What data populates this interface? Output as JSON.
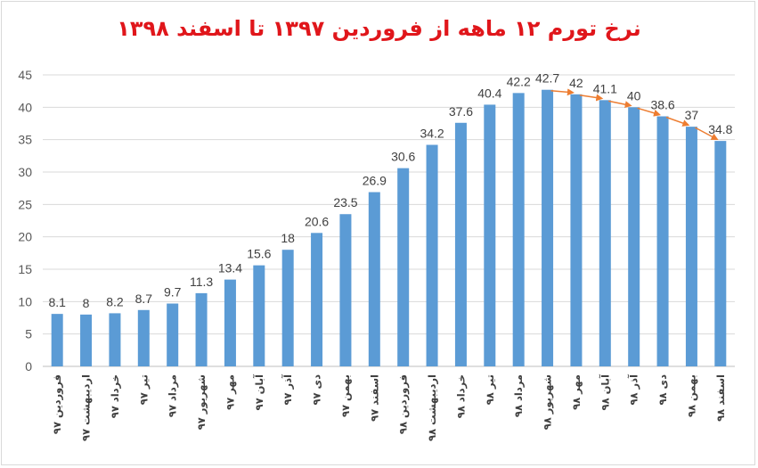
{
  "chart_data": {
    "type": "bar",
    "title": "نرخ تورم ۱۲ ماهه از فروردین ۱۳۹۷ تا اسفند ۱۳۹۸",
    "xlabel": "",
    "ylabel": "",
    "ylim": [
      0,
      45
    ],
    "yticks": [
      "0",
      "5",
      "10",
      "15",
      "20",
      "25",
      "30",
      "35",
      "40",
      "45"
    ],
    "grid": true,
    "legend": "none",
    "categories": [
      "فروردین ۹۷",
      "اردیبهشت ۹۷",
      "خرداد ۹۷",
      "تیر ۹۷",
      "مرداد ۹۷",
      "شهریور ۹۷",
      "مهر ۹۷",
      "آبان ۹۷",
      "آذر ۹۷",
      "دی ۹۷",
      "بهمن ۹۷",
      "اسفند ۹۷",
      "فروردین ۹۸",
      "اردیبهشت ۹۸",
      "خرداد ۹۸",
      "تیر ۹۸",
      "مرداد ۹۸",
      "شهریور ۹۸",
      "مهر ۹۸",
      "آبان ۹۸",
      "آذر ۹۸",
      "دی ۹۸",
      "بهمن ۹۸",
      "اسفند ۹۸"
    ],
    "values": [
      8.1,
      8,
      8.2,
      8.7,
      9.7,
      11.3,
      13.4,
      15.6,
      18,
      20.6,
      23.5,
      26.9,
      30.6,
      34.2,
      37.6,
      40.4,
      42.2,
      42.7,
      42,
      41.1,
      40,
      38.6,
      37,
      34.8
    ],
    "labels": [
      "8.1",
      "8",
      "8.2",
      "8.7",
      "9.7",
      "11.3",
      "13.4",
      "15.6",
      "18",
      "20.6",
      "23.5",
      "26.9",
      "30.6",
      "34.2",
      "37.6",
      "40.4",
      "42.2",
      "42.7",
      "42",
      "41.1",
      "40",
      "38.6",
      "37",
      "34.8"
    ],
    "annotation": {
      "type": "arrows",
      "from_index": 17,
      "to_index": 23
    },
    "colors": {
      "bar": "#5b9bd5",
      "arrow": "#ed7d31",
      "title": "#e0161b",
      "grid": "#d9d9d9"
    }
  }
}
